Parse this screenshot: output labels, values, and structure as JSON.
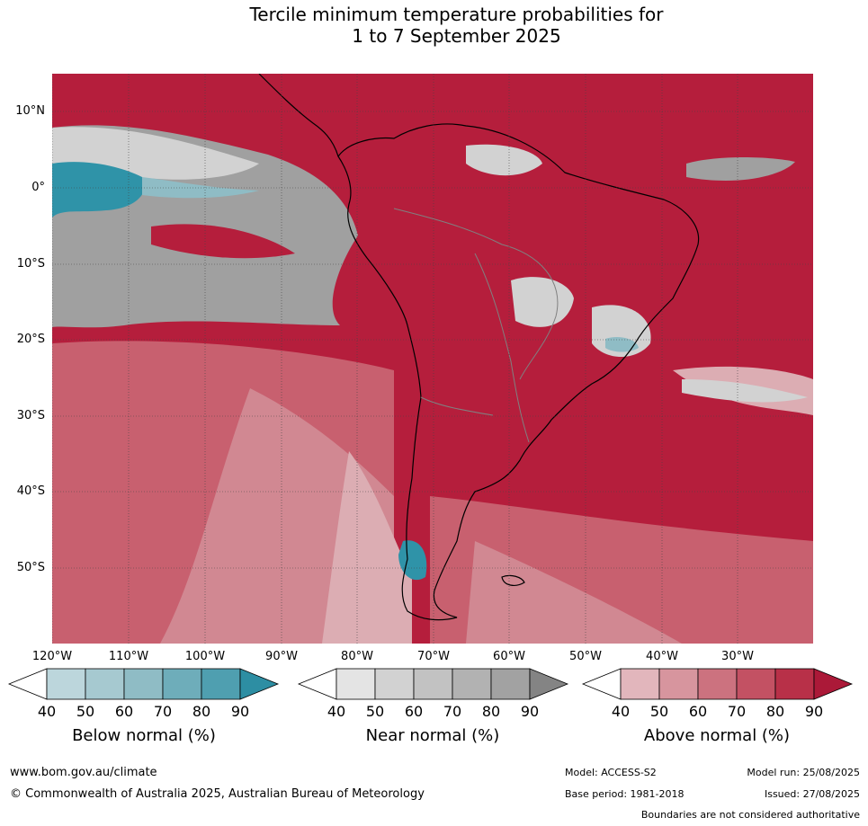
{
  "title_line1": "Tercile minimum temperature probabilities for",
  "title_line2": "1 to 7 September 2025",
  "map": {
    "lat_labels": [
      "10°N",
      "0°",
      "10°S",
      "20°S",
      "30°S",
      "40°S",
      "50°S"
    ],
    "lon_labels": [
      "120°W",
      "110°W",
      "100°W",
      "90°W",
      "80°W",
      "70°W",
      "60°W",
      "50°W",
      "40°W",
      "30°W"
    ],
    "colors": {
      "above_dominant": "#b51e3c",
      "above_70": "#c8606f",
      "above_60": "#d18892",
      "above_50": "#dcadb3",
      "near_normal": "#a0a0a0",
      "near_light": "#d2d2d2",
      "below_normal": "#2f93a8"
    }
  },
  "colorbars": [
    {
      "label": "Below normal (%)",
      "ticks": [
        "40",
        "50",
        "60",
        "70",
        "80",
        "90"
      ],
      "colors": [
        "#ffffff",
        "#bcd6dc",
        "#a6c9d0",
        "#8fbcc5",
        "#6eadba",
        "#4f9fb0",
        "#2d8ea3"
      ]
    },
    {
      "label": "Near normal (%)",
      "ticks": [
        "40",
        "50",
        "60",
        "70",
        "80",
        "90"
      ],
      "colors": [
        "#ffffff",
        "#e4e4e4",
        "#d2d2d2",
        "#c2c2c2",
        "#b2b2b2",
        "#a2a2a2",
        "#848484"
      ]
    },
    {
      "label": "Above normal (%)",
      "ticks": [
        "40",
        "50",
        "60",
        "70",
        "80",
        "90"
      ],
      "colors": [
        "#ffffff",
        "#e2b6bc",
        "#d7959e",
        "#cc727f",
        "#c35163",
        "#b83048",
        "#ab1938"
      ]
    }
  ],
  "footer": {
    "website": "www.bom.gov.au/climate",
    "copyright": "© Commonwealth of Australia 2025, Australian Bureau of Meteorology",
    "model": "Model: ACCESS-S2",
    "model_run": "Model run: 25/08/2025",
    "base_period": "Base period: 1981-2018",
    "issued": "Issued: 27/08/2025",
    "disclaimer": "Boundaries are not considered authoritative"
  }
}
